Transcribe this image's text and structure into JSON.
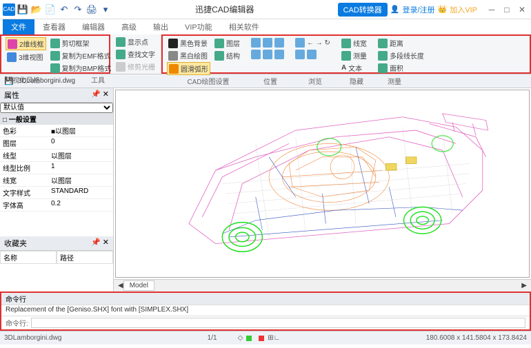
{
  "app": {
    "title": "迅捷CAD编辑器",
    "logo_bg": "#0a7be0"
  },
  "titlebar_right": {
    "convert": "CAD转换器",
    "login": "登录/注册",
    "vip": "加入VIP"
  },
  "quick_access": [
    "save",
    "open",
    "new",
    "undo",
    "redo",
    "print",
    "help"
  ],
  "tabs": [
    "文件",
    "查看器",
    "编辑器",
    "高级",
    "输出",
    "VIP功能",
    "相关软件"
  ],
  "active_tab": "文件",
  "ribbon": {
    "g1": {
      "label": "可视化风格",
      "items": [
        {
          "text": "2维线框",
          "sel": true
        },
        {
          "text": "3维视图",
          "sel": false
        }
      ]
    },
    "g2": {
      "label": "工具",
      "items": [
        "剪切框架",
        "复制为EMF格式",
        "复制为BMP格式"
      ]
    },
    "g3": {
      "label": "",
      "items": [
        "显示点",
        "查找文字",
        "修剪光栅"
      ]
    },
    "g4": {
      "label": "CAD绘图设置",
      "items": [
        "黑色背景",
        "黑白绘图",
        "圆滑弧形"
      ],
      "items2": [
        "图层",
        "结构"
      ],
      "sel_item": "圆滑弧形"
    },
    "g5": {
      "label": "位置"
    },
    "g6": {
      "label": "浏览"
    },
    "g7": {
      "label": "隐藏",
      "items": [
        "线宽",
        "测量",
        "文本"
      ]
    },
    "g8": {
      "label": "测量",
      "items": [
        "距离",
        "多段线长度",
        "面积"
      ]
    }
  },
  "document": "3DLamborgini.dwg",
  "props_panel": {
    "title": "属性",
    "selector": "默认值",
    "section": "一般设置",
    "rows": [
      {
        "k": "色彩",
        "v": "■以图层"
      },
      {
        "k": "图层",
        "v": "0"
      },
      {
        "k": "线型",
        "v": "以图层"
      },
      {
        "k": "线型比例",
        "v": "1"
      },
      {
        "k": "线宽",
        "v": "以图层"
      },
      {
        "k": "文字样式",
        "v": "STANDARD"
      },
      {
        "k": "字体高",
        "v": "0.2"
      }
    ]
  },
  "fav_panel": {
    "title": "收藏夹",
    "cols": [
      "名称",
      "路径"
    ]
  },
  "model_tab": "Model",
  "cmd": {
    "title": "命令行",
    "log": "Replacement of the [Geniso.SHX] font with [SIMPLEX.SHX]",
    "prompt": "命令行:"
  },
  "status": {
    "file": "3DLamborgini.dwg",
    "page": "1/1",
    "coords": "180.6008 x 141.5804 x 173.8424"
  },
  "colors": {
    "accent": "#0a7be0",
    "redbox": "#e03030",
    "wheel": "#20e020",
    "body": "#e060c0",
    "interior": "#f08030",
    "chassis": "#3050c0",
    "detail": "#d0b020"
  }
}
